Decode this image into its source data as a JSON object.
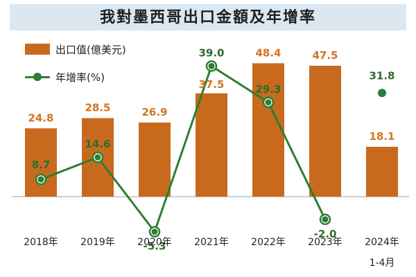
{
  "chart_data": {
    "type": "bar",
    "title": "我對墨西哥出口金額及年增率",
    "categories": [
      "2018年",
      "2019年",
      "2020年",
      "2021年",
      "2022年",
      "2023年",
      "2024年"
    ],
    "category_sublabels": [
      "",
      "",
      "",
      "",
      "",
      "",
      "1-4月"
    ],
    "series": [
      {
        "name": "出口值(億美元)",
        "type": "bar",
        "values": [
          24.8,
          28.5,
          26.9,
          37.5,
          48.4,
          47.5,
          18.1
        ],
        "color": "#c86a1e"
      },
      {
        "name": "年增率(%)",
        "type": "line",
        "values": [
          8.7,
          14.6,
          -5.3,
          39.0,
          29.3,
          -2.0,
          31.8
        ],
        "color": "#2e7d32",
        "connected": [
          true,
          true,
          true,
          true,
          true,
          true,
          false
        ]
      }
    ],
    "value_labels": {
      "bars": [
        "24.8",
        "28.5",
        "26.9",
        "37.5",
        "48.4",
        "47.5",
        "18.1"
      ],
      "rates": [
        "8.7",
        "14.6",
        "-5.3",
        "39.0",
        "29.3",
        "-2.0",
        "31.8"
      ]
    },
    "legend_position": "top-left",
    "grid": false,
    "colors": {
      "bar": "#c86a1e",
      "bar_label": "#d4731f",
      "line": "#2e7d32",
      "line_label": "#2e6b2e",
      "title_bg": "#dbe8f2"
    }
  }
}
